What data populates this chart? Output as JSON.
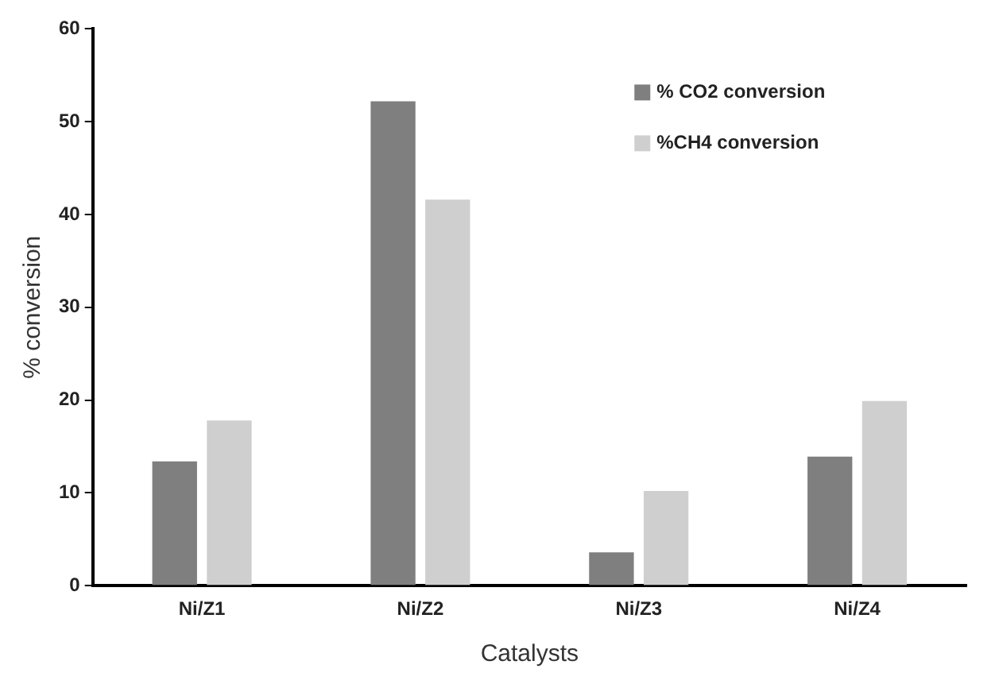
{
  "chart_data": {
    "type": "bar",
    "xlabel": "Catalysts",
    "ylabel": "% conversion",
    "categories": [
      "Ni/Z1",
      "Ni/Z2",
      "Ni/Z3",
      "Ni/Z4"
    ],
    "series": [
      {
        "name": "% CO2 conversion",
        "color": "#7f7f7f",
        "values": [
          13.4,
          52.2,
          3.6,
          13.9
        ]
      },
      {
        "name": "%CH4 conversion",
        "color": "#d0cfd0",
        "values": [
          17.8,
          41.6,
          10.2,
          19.9
        ]
      }
    ],
    "ylim": [
      0,
      60
    ],
    "yticks": [
      0,
      10,
      20,
      30,
      40,
      50,
      60
    ],
    "grid": false,
    "legend": "top right"
  }
}
